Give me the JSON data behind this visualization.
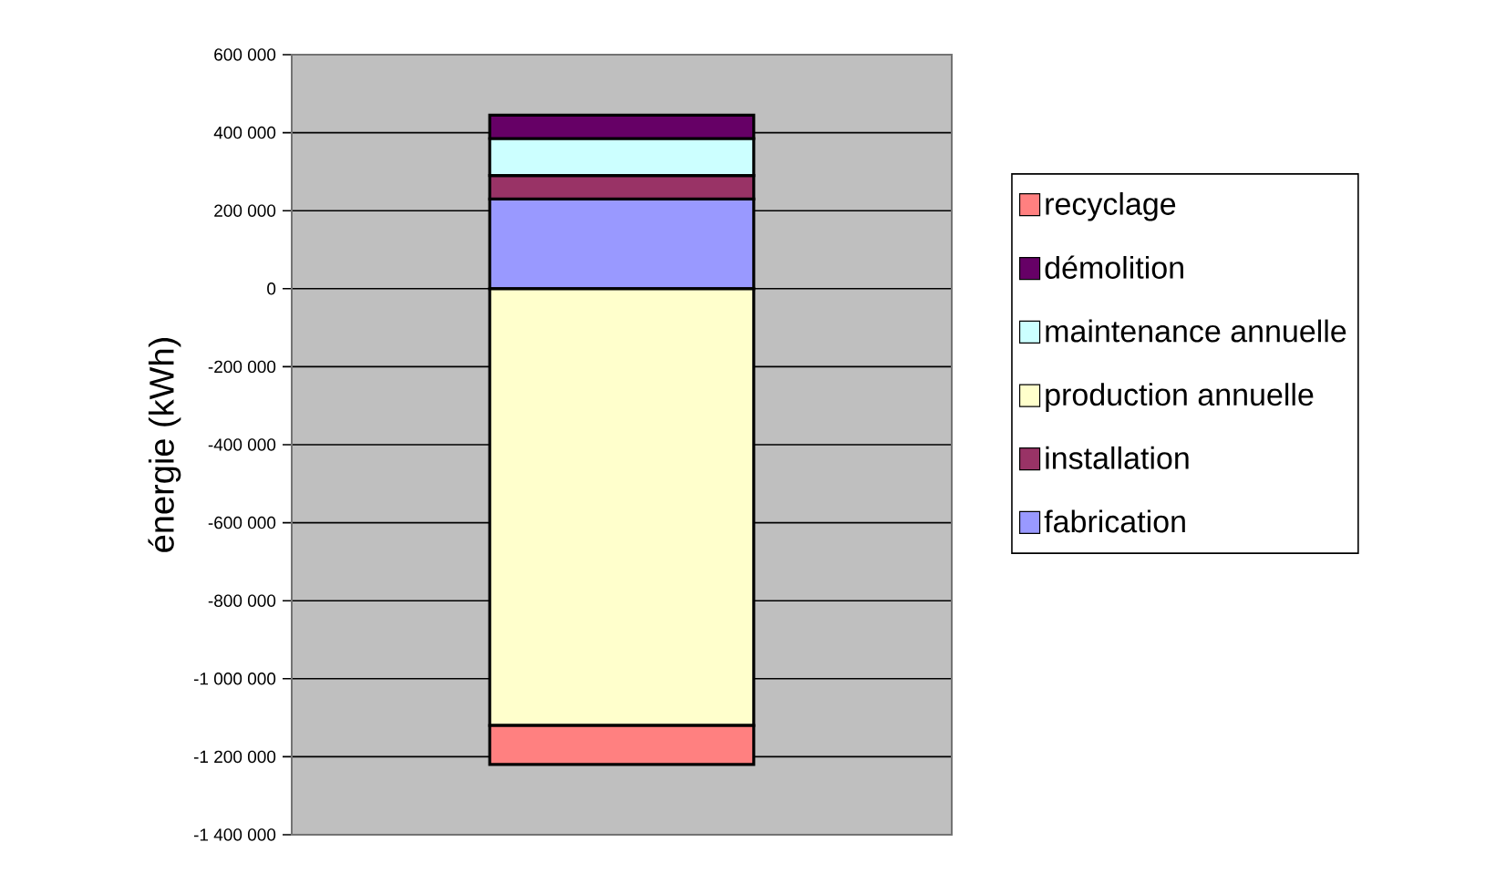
{
  "chart_data": {
    "type": "bar",
    "stacked": true,
    "ylabel": "énergie (kWh)",
    "categories": [
      null
    ],
    "series": [
      {
        "name": "fabrication",
        "color": "#9999ff",
        "values": [
          230000
        ]
      },
      {
        "name": "installation",
        "color": "#993366",
        "values": [
          60000
        ]
      },
      {
        "name": "production annuelle",
        "color": "#ffffcc",
        "values": [
          -1120000
        ]
      },
      {
        "name": "maintenance annuelle",
        "color": "#ccffff",
        "values": [
          95000
        ]
      },
      {
        "name": "démolition",
        "color": "#660066",
        "values": [
          60000
        ]
      },
      {
        "name": "recyclage",
        "color": "#ff8080",
        "values": [
          -100000
        ]
      }
    ],
    "ylim": [
      -1400000,
      600000
    ],
    "yticks": [
      {
        "value": 600000,
        "label": "600 000"
      },
      {
        "value": 400000,
        "label": "400 000"
      },
      {
        "value": 200000,
        "label": "200 000"
      },
      0,
      {
        "value": -200000,
        "label": "-200 000"
      },
      {
        "value": -400000,
        "label": "-400 000"
      },
      {
        "value": -600000,
        "label": "-600 000"
      },
      {
        "value": -800000,
        "label": "-800 000"
      },
      {
        "value": -1000000,
        "label": "-1 000 000"
      },
      {
        "value": -1200000,
        "label": "-1 200 000"
      },
      {
        "value": -1400000,
        "label": "-1 400 000"
      }
    ],
    "grid": "y",
    "legend": "right"
  }
}
